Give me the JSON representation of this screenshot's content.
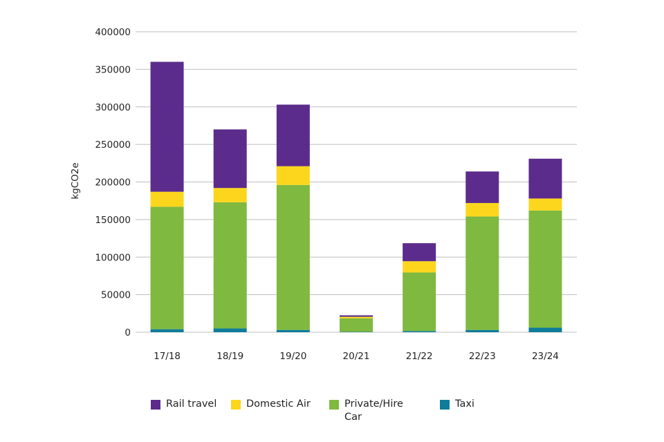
{
  "chart_data": {
    "type": "bar",
    "stacked": true,
    "categories": [
      "17/18",
      "18/19",
      "19/20",
      "20/21",
      "21/22",
      "22/23",
      "23/24"
    ],
    "series": [
      {
        "name": "Taxi",
        "color": "#0e7c9a",
        "values": [
          4000,
          5000,
          3000,
          500,
          1500,
          3000,
          6000
        ]
      },
      {
        "name": "Private/Hire Car",
        "color": "#7fb93f",
        "values": [
          163000,
          168000,
          193000,
          18000,
          78000,
          151000,
          156000
        ]
      },
      {
        "name": "Domestic Air",
        "color": "#fcd61d",
        "values": [
          20000,
          19000,
          25000,
          2000,
          15000,
          18000,
          16000
        ]
      },
      {
        "name": "Rail travel",
        "color": "#5b2c8c",
        "values": [
          173000,
          78000,
          82000,
          2000,
          24000,
          42000,
          53000
        ]
      }
    ],
    "ylabel": "kgCO2e",
    "xlabel": "",
    "ylim": [
      0,
      400000
    ],
    "yticks": [
      "400000",
      "350000",
      "300000",
      "250000",
      "200000",
      "150000",
      "100000",
      "50000",
      "0"
    ],
    "grid": true,
    "gridColor": "#bdbdbd",
    "legend": {
      "position": "bottom",
      "entries": [
        {
          "name": "Rail travel",
          "color": "#5b2c8c"
        },
        {
          "name": "Domestic Air",
          "color": "#fcd61d"
        },
        {
          "name": "Private/Hire Car",
          "color": "#7fb93f"
        },
        {
          "name": "Taxi",
          "color": "#0e7c9a"
        }
      ]
    }
  }
}
